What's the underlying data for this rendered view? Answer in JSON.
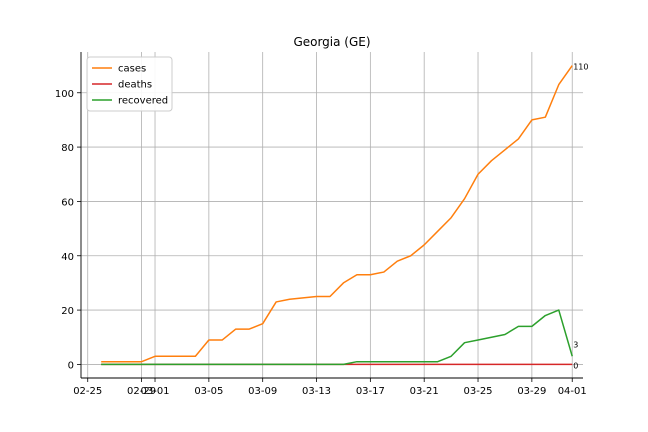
{
  "chart_data": {
    "type": "line",
    "title": "Georgia (GE)",
    "xlabel": "",
    "ylabel": "",
    "x": [
      "02-26",
      "02-27",
      "02-28",
      "02-29",
      "03-01",
      "03-02",
      "03-03",
      "03-04",
      "03-05",
      "03-06",
      "03-07",
      "03-08",
      "03-09",
      "03-10",
      "03-11",
      "03-12",
      "03-13",
      "03-14",
      "03-15",
      "03-16",
      "03-17",
      "03-18",
      "03-19",
      "03-20",
      "03-21",
      "03-22",
      "03-23",
      "03-24",
      "03-25",
      "03-26",
      "03-27",
      "03-28",
      "03-29",
      "03-30",
      "03-31",
      "04-01"
    ],
    "x_ticks": [
      "02-25",
      "02-29",
      "03-01",
      "03-05",
      "03-09",
      "03-13",
      "03-17",
      "03-21",
      "03-25",
      "03-29",
      "04-01"
    ],
    "y_ticks": [
      0,
      20,
      40,
      60,
      80,
      100
    ],
    "ylim": [
      -5,
      115
    ],
    "grid": true,
    "legend_position": "top-left",
    "series": [
      {
        "name": "cases",
        "color": "#ff7f0e",
        "values": [
          1,
          1,
          1,
          1,
          3,
          3,
          3,
          3,
          9,
          9,
          13,
          13,
          15,
          23,
          24,
          24.5,
          25,
          25,
          30,
          33,
          33,
          34,
          38,
          40,
          44,
          49,
          54,
          61,
          70,
          75,
          79,
          83,
          90,
          91,
          103,
          110
        ]
      },
      {
        "name": "deaths",
        "color": "#d62728",
        "values": [
          0,
          0,
          0,
          0,
          0,
          0,
          0,
          0,
          0,
          0,
          0,
          0,
          0,
          0,
          0,
          0,
          0,
          0,
          0,
          0,
          0,
          0,
          0,
          0,
          0,
          0,
          0,
          0,
          0,
          0,
          0,
          0,
          0,
          0,
          0,
          0
        ]
      },
      {
        "name": "recovered",
        "color": "#2ca02c",
        "values": [
          0,
          0,
          0,
          0,
          0,
          0,
          0,
          0,
          0,
          0,
          0,
          0,
          0,
          0,
          0,
          0,
          0,
          0,
          0,
          1,
          1,
          1,
          1,
          1,
          1,
          1,
          3,
          8,
          9,
          10,
          11,
          14,
          14,
          18,
          20,
          3
        ]
      }
    ],
    "end_labels": [
      {
        "series": "cases",
        "text": "110"
      },
      {
        "series": "recovered",
        "text": "3"
      },
      {
        "series": "deaths",
        "text": "0"
      }
    ]
  }
}
